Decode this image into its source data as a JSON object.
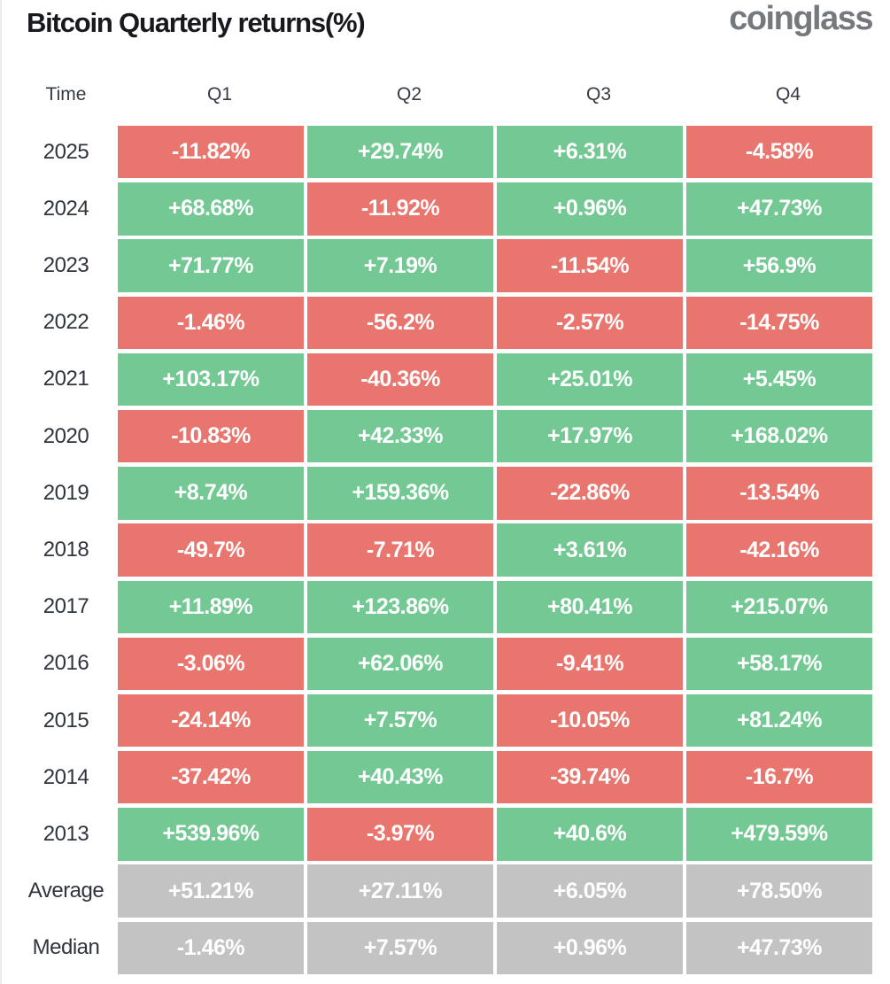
{
  "header": {
    "title": "Bitcoin Quarterly returns(%)",
    "logo": "coinglass"
  },
  "colors": {
    "positive": "#73c893",
    "negative": "#e8766f",
    "neutral": "#c3c3c3"
  },
  "chart_data": {
    "type": "table",
    "title": "Bitcoin Quarterly returns(%)",
    "columns": [
      "Time",
      "Q1",
      "Q2",
      "Q3",
      "Q4"
    ],
    "rows": [
      {
        "label": "2025",
        "kind": "year",
        "values": [
          "-11.82%",
          "+29.74%",
          "+6.31%",
          "-4.58%"
        ]
      },
      {
        "label": "2024",
        "kind": "year",
        "values": [
          "+68.68%",
          "-11.92%",
          "+0.96%",
          "+47.73%"
        ]
      },
      {
        "label": "2023",
        "kind": "year",
        "values": [
          "+71.77%",
          "+7.19%",
          "-11.54%",
          "+56.9%"
        ]
      },
      {
        "label": "2022",
        "kind": "year",
        "values": [
          "-1.46%",
          "-56.2%",
          "-2.57%",
          "-14.75%"
        ]
      },
      {
        "label": "2021",
        "kind": "year",
        "values": [
          "+103.17%",
          "-40.36%",
          "+25.01%",
          "+5.45%"
        ]
      },
      {
        "label": "2020",
        "kind": "year",
        "values": [
          "-10.83%",
          "+42.33%",
          "+17.97%",
          "+168.02%"
        ]
      },
      {
        "label": "2019",
        "kind": "year",
        "values": [
          "+8.74%",
          "+159.36%",
          "-22.86%",
          "-13.54%"
        ]
      },
      {
        "label": "2018",
        "kind": "year",
        "values": [
          "-49.7%",
          "-7.71%",
          "+3.61%",
          "-42.16%"
        ]
      },
      {
        "label": "2017",
        "kind": "year",
        "values": [
          "+11.89%",
          "+123.86%",
          "+80.41%",
          "+215.07%"
        ]
      },
      {
        "label": "2016",
        "kind": "year",
        "values": [
          "-3.06%",
          "+62.06%",
          "-9.41%",
          "+58.17%"
        ]
      },
      {
        "label": "2015",
        "kind": "year",
        "values": [
          "-24.14%",
          "+7.57%",
          "-10.05%",
          "+81.24%"
        ]
      },
      {
        "label": "2014",
        "kind": "year",
        "values": [
          "-37.42%",
          "+40.43%",
          "-39.74%",
          "-16.7%"
        ]
      },
      {
        "label": "2013",
        "kind": "year",
        "values": [
          "+539.96%",
          "-3.97%",
          "+40.6%",
          "+479.59%"
        ]
      },
      {
        "label": "Average",
        "kind": "summary",
        "values": [
          "+51.21%",
          "+27.11%",
          "+6.05%",
          "+78.50%"
        ]
      },
      {
        "label": "Median",
        "kind": "summary",
        "values": [
          "-1.46%",
          "+7.57%",
          "+0.96%",
          "+47.73%"
        ]
      }
    ]
  }
}
